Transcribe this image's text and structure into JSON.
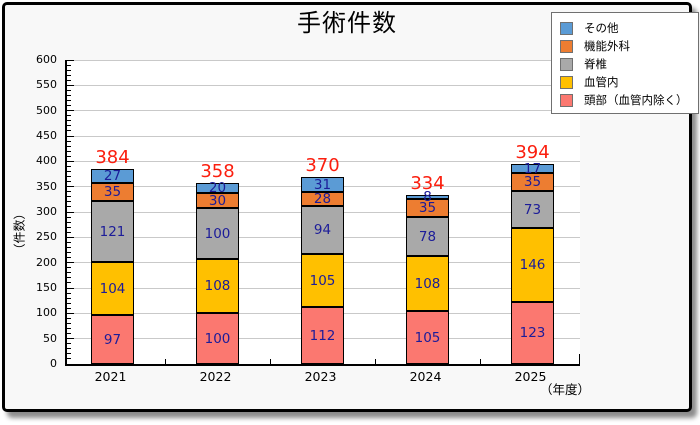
{
  "title": "手術件数",
  "colors": {
    "blue": "#5b9bd5",
    "orange": "#ed7d31",
    "gray": "#a9a9a9",
    "yellow": "#ffc000",
    "pink": "#fb7870",
    "value_label": "#1c1c99",
    "total_label": "#fb1e0e",
    "grid": "#c9c9c9",
    "axis": "#000000",
    "plot_bg": "#ffffff",
    "card_bg": "#f8f8f8"
  },
  "legend": [
    {
      "label": "その他",
      "color": "#5b9bd5"
    },
    {
      "label": "機能外科",
      "color": "#ed7d31"
    },
    {
      "label": "脊椎",
      "color": "#a9a9a9"
    },
    {
      "label": "血管内",
      "color": "#ffc000"
    },
    {
      "label": "頭部（血管内除く）",
      "color": "#fb7870"
    }
  ],
  "chart_data": {
    "type": "bar",
    "stacked": true,
    "title": "手術件数",
    "xlabel": "（年度）",
    "ylabel": "（件数）",
    "categories": [
      "2021",
      "2022",
      "2023",
      "2024",
      "2025"
    ],
    "series": [
      {
        "name": "頭部（血管内除く）",
        "color": "#fb7870",
        "values": [
          97,
          100,
          112,
          105,
          123
        ]
      },
      {
        "name": "血管内",
        "color": "#ffc000",
        "values": [
          104,
          108,
          105,
          108,
          146
        ]
      },
      {
        "name": "脊椎",
        "color": "#a9a9a9",
        "values": [
          121,
          100,
          94,
          78,
          73
        ]
      },
      {
        "name": "機能外科",
        "color": "#ed7d31",
        "values": [
          35,
          30,
          28,
          35,
          35
        ]
      },
      {
        "name": "その他",
        "color": "#5b9bd5",
        "values": [
          27,
          20,
          31,
          8,
          17
        ]
      }
    ],
    "totals": [
      384,
      358,
      370,
      334,
      394
    ],
    "ylim": [
      0,
      600
    ],
    "yticks": [
      0,
      50,
      100,
      150,
      200,
      250,
      300,
      350,
      400,
      450,
      500,
      550,
      600
    ],
    "yminor_step": 10,
    "grid": true,
    "legend_position": "top-right",
    "legend_order": [
      "その他",
      "機能外科",
      "脊椎",
      "血管内",
      "頭部（血管内除く）"
    ]
  }
}
